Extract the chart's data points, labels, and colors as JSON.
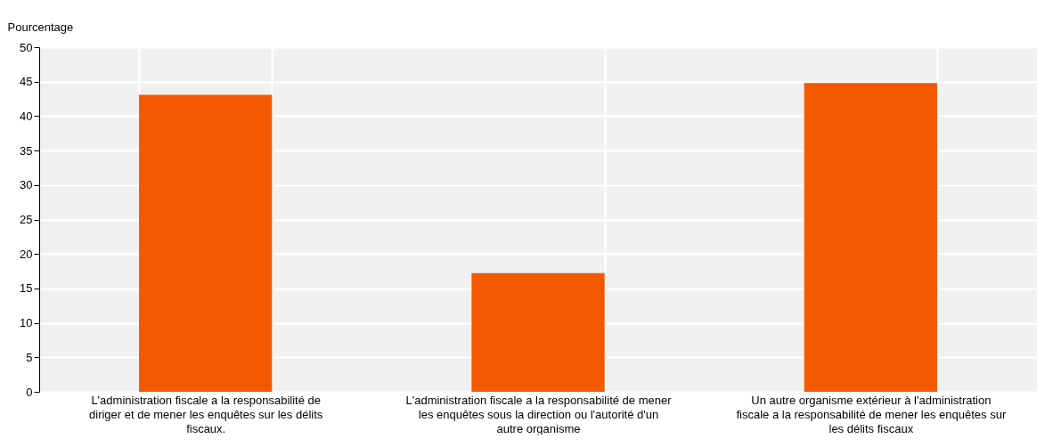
{
  "chart_data": {
    "type": "bar",
    "ylabel": "Pourcentage",
    "categories": [
      "L'administration fiscale a la responsabilité de diriger et de mener les enquêtes sur les délits fiscaux.",
      "L'administration fiscale a la responsabilité de mener les enquêtes sous la direction ou l'autorité d'un autre organisme",
      "Un autre organisme extérieur à l'administration fiscale a la responsabilité de mener les enquêtes sur les délits fiscaux"
    ],
    "values": [
      43.1,
      17.2,
      44.8
    ],
    "color": "#f45800",
    "ylim": [
      0,
      50
    ],
    "yticks": [
      0,
      5,
      10,
      15,
      20,
      25,
      30,
      35,
      40,
      45,
      50
    ],
    "grid": true
  }
}
